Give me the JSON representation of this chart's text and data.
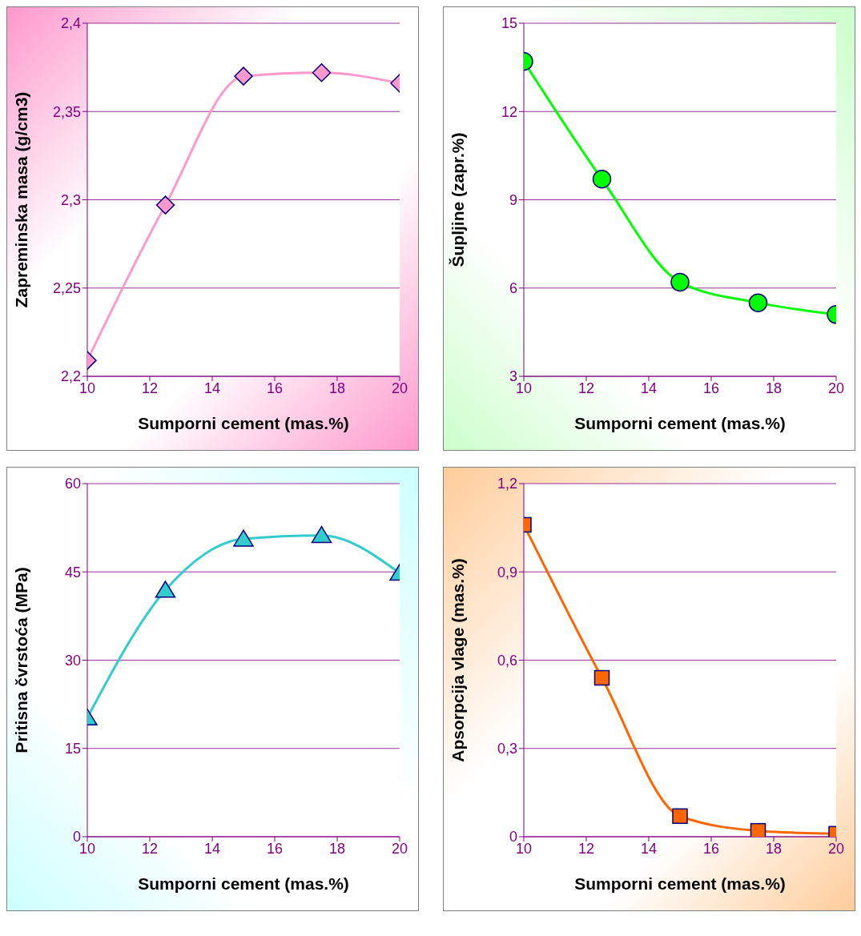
{
  "chart_data": [
    {
      "type": "line",
      "xlabel": "Sumporni cement (mas.%)",
      "ylabel": "Zapreminska masa (g/cm3)",
      "x": [
        10,
        12.5,
        15,
        17.5,
        20
      ],
      "series": [
        {
          "color": "#ff99cc",
          "values": [
            2.209,
            2.297,
            2.37,
            2.372,
            2.366
          ]
        }
      ],
      "xlim": [
        10,
        20
      ],
      "xticks": [
        10,
        12,
        14,
        16,
        18,
        20
      ],
      "ylim": [
        2.2,
        2.4
      ],
      "yticks": [
        {
          "value": 2.2,
          "label": "2,2"
        },
        {
          "value": 2.25,
          "label": "2,25"
        },
        {
          "value": 2.3,
          "label": "2,3"
        },
        {
          "value": 2.35,
          "label": "2,35"
        },
        {
          "value": 2.4,
          "label": "2,4"
        }
      ],
      "grid": "y",
      "marker": "diamond",
      "line_style": "solid"
    },
    {
      "type": "line",
      "xlabel": "Sumporni cement (mas.%)",
      "ylabel": "Šupljine (zapr.%)",
      "x": [
        10,
        12.5,
        15,
        17.5,
        20
      ],
      "series": [
        {
          "color": "#00ff00",
          "values": [
            13.7,
            9.7,
            6.2,
            5.5,
            5.1
          ]
        }
      ],
      "xlim": [
        10,
        20
      ],
      "xticks": [
        10,
        12,
        14,
        16,
        18,
        20
      ],
      "ylim": [
        3,
        15
      ],
      "yticks": [
        3,
        6,
        9,
        12,
        15
      ],
      "grid": "y",
      "marker": "circle",
      "line_style": "solid"
    },
    {
      "type": "line",
      "xlabel": "Sumporni cement (mas.%)",
      "ylabel": "Pritisna čvrstoća (MPa)",
      "x": [
        10,
        12.5,
        15,
        17.5,
        20
      ],
      "series": [
        {
          "color": "#33cccc",
          "values": [
            20.2,
            41.9,
            50.6,
            51.2,
            44.8
          ]
        }
      ],
      "xlim": [
        10,
        20
      ],
      "xticks": [
        10,
        12,
        14,
        16,
        18,
        20
      ],
      "ylim": [
        0,
        60
      ],
      "yticks": [
        0,
        15,
        30,
        45,
        60
      ],
      "grid": "y",
      "marker": "triangle",
      "line_style": "solid"
    },
    {
      "type": "line",
      "xlabel": "Sumporni cement (mas.%)",
      "ylabel": "Apsorpcija vlage (mas.%)",
      "x": [
        10,
        12.5,
        15,
        17.5,
        20
      ],
      "series": [
        {
          "color": "#ff6600",
          "values": [
            1.06,
            0.54,
            0.07,
            0.02,
            0.01
          ]
        }
      ],
      "xlim": [
        10,
        20
      ],
      "xticks": [
        10,
        12,
        14,
        16,
        18,
        20
      ],
      "ylim": [
        0,
        1.2
      ],
      "yticks": [
        0,
        {
          "value": 0.3,
          "label": "0,3"
        },
        {
          "value": 0.6,
          "label": "0,6"
        },
        {
          "value": 0.9,
          "label": "0,9"
        },
        {
          "value": 1.2,
          "label": "1,2"
        }
      ],
      "grid": "y",
      "marker": "square",
      "line_style": "solid"
    }
  ]
}
